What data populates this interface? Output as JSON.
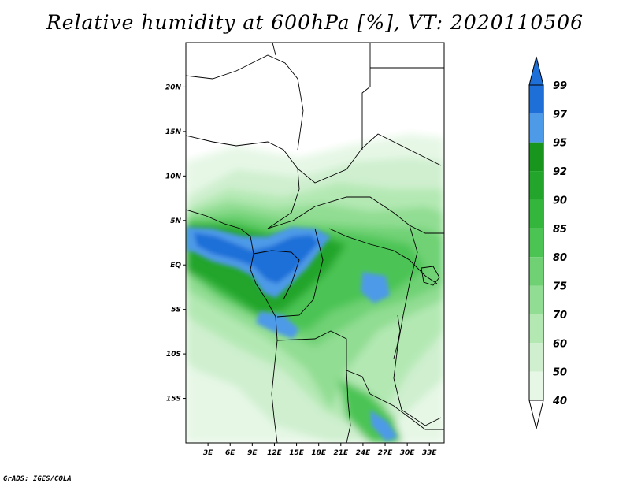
{
  "title": "Relative humidity at 600hPa [%], VT: 2020110506",
  "footer": "GrADS: IGES/COLA",
  "map": {
    "lon_range": [
      0,
      35
    ],
    "lat_range": [
      -20,
      25
    ],
    "lat_ticks": [
      {
        "value": 20,
        "label": "20N"
      },
      {
        "value": 15,
        "label": "15N"
      },
      {
        "value": 10,
        "label": "10N"
      },
      {
        "value": 5,
        "label": "5N"
      },
      {
        "value": 0,
        "label": "EQ"
      },
      {
        "value": -5,
        "label": "5S"
      },
      {
        "value": -10,
        "label": "10S"
      },
      {
        "value": -15,
        "label": "15S"
      }
    ],
    "lon_ticks": [
      {
        "value": 3,
        "label": "3E"
      },
      {
        "value": 6,
        "label": "6E"
      },
      {
        "value": 9,
        "label": "9E"
      },
      {
        "value": 12,
        "label": "12E"
      },
      {
        "value": 15,
        "label": "15E"
      },
      {
        "value": 18,
        "label": "18E"
      },
      {
        "value": 21,
        "label": "21E"
      },
      {
        "value": 24,
        "label": "24E"
      },
      {
        "value": 27,
        "label": "27E"
      },
      {
        "value": 30,
        "label": "30E"
      },
      {
        "value": 33,
        "label": "33E"
      }
    ]
  },
  "colorbar": {
    "levels": [
      "99",
      "97",
      "95",
      "92",
      "90",
      "85",
      "80",
      "75",
      "70",
      "60",
      "50",
      "40"
    ],
    "colors": [
      "#1f6fd8",
      "#4d9ae8",
      "#17951c",
      "#22a52a",
      "#34b53c",
      "#4cc454",
      "#6fd174",
      "#91dd93",
      "#b3e8b3",
      "#cfefcf",
      "#e6f7e6"
    ],
    "top_arrow_color": "#1f6fd8",
    "bottom_arrow_color": "#ffffff"
  }
}
